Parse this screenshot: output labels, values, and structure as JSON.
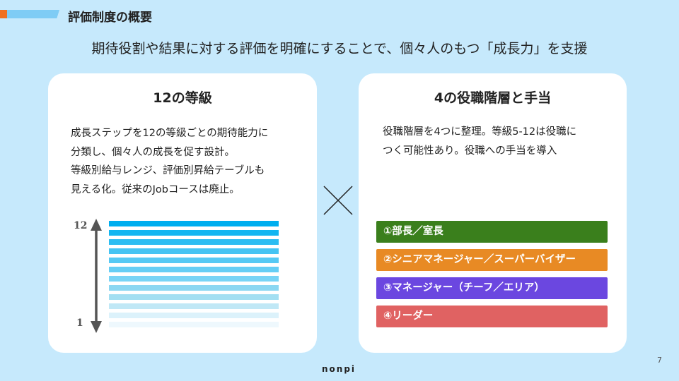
{
  "header": {
    "title": "評価制度の概要",
    "subtitle": "期待役割や結果に対する評価を明確にすることで、個々人のもつ「成長力」を支援"
  },
  "left": {
    "title": "12の等級",
    "lines": [
      "成長ステップを12の等級ごとの期待能力に",
      "分類し、個々人の成長を促す設計。",
      "等級別給与レンジ、評価別昇給テーブルも",
      "見える化。従来のJobコースは廃止。"
    ],
    "top_label": "12",
    "bottom_label": "1",
    "bar_colors": [
      "#00aeef",
      "#12b6f1",
      "#2bbdf2",
      "#45c4f3",
      "#56c9f4",
      "#66cef5",
      "#78d4f6",
      "#8bd7f2",
      "#a3dff2",
      "#c0e8f6",
      "#dcf2fb",
      "#eef8fd"
    ]
  },
  "cross_icon": "multiply-icon",
  "right": {
    "title": "4の役職階層と手当",
    "lines": [
      "役職階層を4つに整理。等級5-12は役職に",
      "つく可能性あり。役職への手当を導入"
    ],
    "roles": [
      {
        "label": "①部長／室長",
        "color": "#3a7f1c"
      },
      {
        "label": "②シニアマネージャー／スーパーバイザー",
        "color": "#e88a24"
      },
      {
        "label": "③マネージャー（チーフ／エリア）",
        "color": "#6b47e0"
      },
      {
        "label": "④リーダー",
        "color": "#e06262"
      }
    ]
  },
  "footer": {
    "logo": "nonpi",
    "page": "7"
  }
}
